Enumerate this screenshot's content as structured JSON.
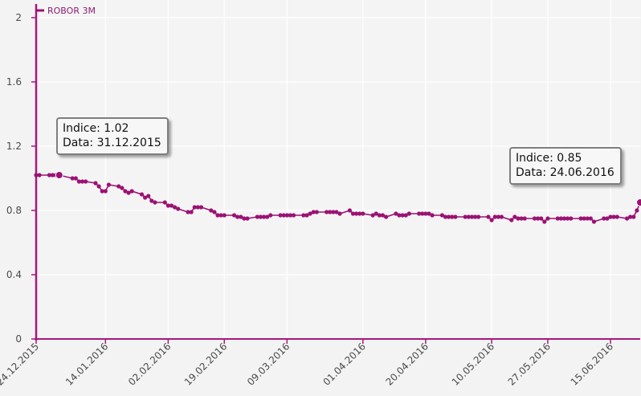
{
  "chart_data": {
    "type": "line",
    "series": [
      {
        "name": "ROBOR 3M",
        "color": "#9b1273",
        "points": [
          [
            "2015-12-24",
            1.02
          ],
          [
            "2015-12-25",
            1.02
          ],
          [
            "2015-12-28",
            1.02
          ],
          [
            "2015-12-29",
            1.02
          ],
          [
            "2015-12-30",
            1.02
          ],
          [
            "2015-12-31",
            1.02
          ],
          [
            "2016-01-04",
            1.0
          ],
          [
            "2016-01-05",
            1.0
          ],
          [
            "2016-01-06",
            0.98
          ],
          [
            "2016-01-07",
            0.98
          ],
          [
            "2016-01-08",
            0.98
          ],
          [
            "2016-01-11",
            0.97
          ],
          [
            "2016-01-12",
            0.95
          ],
          [
            "2016-01-13",
            0.92
          ],
          [
            "2016-01-14",
            0.92
          ],
          [
            "2016-01-15",
            0.96
          ],
          [
            "2016-01-18",
            0.95
          ],
          [
            "2016-01-19",
            0.94
          ],
          [
            "2016-01-20",
            0.92
          ],
          [
            "2016-01-21",
            0.91
          ],
          [
            "2016-01-22",
            0.92
          ],
          [
            "2016-01-25",
            0.9
          ],
          [
            "2016-01-26",
            0.88
          ],
          [
            "2016-01-27",
            0.89
          ],
          [
            "2016-01-28",
            0.86
          ],
          [
            "2016-01-29",
            0.85
          ],
          [
            "2016-02-01",
            0.85
          ],
          [
            "2016-02-02",
            0.83
          ],
          [
            "2016-02-03",
            0.83
          ],
          [
            "2016-02-04",
            0.82
          ],
          [
            "2016-02-05",
            0.81
          ],
          [
            "2016-02-08",
            0.79
          ],
          [
            "2016-02-09",
            0.79
          ],
          [
            "2016-02-10",
            0.82
          ],
          [
            "2016-02-11",
            0.82
          ],
          [
            "2016-02-12",
            0.82
          ],
          [
            "2016-02-15",
            0.8
          ],
          [
            "2016-02-16",
            0.79
          ],
          [
            "2016-02-17",
            0.77
          ],
          [
            "2016-02-18",
            0.77
          ],
          [
            "2016-02-19",
            0.77
          ],
          [
            "2016-02-22",
            0.77
          ],
          [
            "2016-02-23",
            0.76
          ],
          [
            "2016-02-24",
            0.76
          ],
          [
            "2016-02-25",
            0.75
          ],
          [
            "2016-02-26",
            0.75
          ],
          [
            "2016-02-29",
            0.76
          ],
          [
            "2016-03-01",
            0.76
          ],
          [
            "2016-03-02",
            0.76
          ],
          [
            "2016-03-03",
            0.76
          ],
          [
            "2016-03-04",
            0.77
          ],
          [
            "2016-03-07",
            0.77
          ],
          [
            "2016-03-08",
            0.77
          ],
          [
            "2016-03-09",
            0.77
          ],
          [
            "2016-03-10",
            0.77
          ],
          [
            "2016-03-11",
            0.77
          ],
          [
            "2016-03-14",
            0.77
          ],
          [
            "2016-03-15",
            0.77
          ],
          [
            "2016-03-16",
            0.78
          ],
          [
            "2016-03-17",
            0.79
          ],
          [
            "2016-03-18",
            0.79
          ],
          [
            "2016-03-21",
            0.79
          ],
          [
            "2016-03-22",
            0.79
          ],
          [
            "2016-03-23",
            0.79
          ],
          [
            "2016-03-24",
            0.79
          ],
          [
            "2016-03-25",
            0.78
          ],
          [
            "2016-03-28",
            0.8
          ],
          [
            "2016-03-29",
            0.78
          ],
          [
            "2016-03-30",
            0.78
          ],
          [
            "2016-03-31",
            0.78
          ],
          [
            "2016-04-01",
            0.78
          ],
          [
            "2016-04-04",
            0.77
          ],
          [
            "2016-04-05",
            0.78
          ],
          [
            "2016-04-06",
            0.77
          ],
          [
            "2016-04-07",
            0.77
          ],
          [
            "2016-04-08",
            0.76
          ],
          [
            "2016-04-11",
            0.78
          ],
          [
            "2016-04-12",
            0.77
          ],
          [
            "2016-04-13",
            0.77
          ],
          [
            "2016-04-14",
            0.77
          ],
          [
            "2016-04-15",
            0.78
          ],
          [
            "2016-04-18",
            0.78
          ],
          [
            "2016-04-19",
            0.78
          ],
          [
            "2016-04-20",
            0.78
          ],
          [
            "2016-04-21",
            0.78
          ],
          [
            "2016-04-22",
            0.77
          ],
          [
            "2016-04-25",
            0.77
          ],
          [
            "2016-04-26",
            0.76
          ],
          [
            "2016-04-27",
            0.76
          ],
          [
            "2016-04-28",
            0.76
          ],
          [
            "2016-04-29",
            0.76
          ],
          [
            "2016-05-02",
            0.76
          ],
          [
            "2016-05-03",
            0.76
          ],
          [
            "2016-05-04",
            0.76
          ],
          [
            "2016-05-05",
            0.76
          ],
          [
            "2016-05-06",
            0.76
          ],
          [
            "2016-05-09",
            0.76
          ],
          [
            "2016-05-10",
            0.74
          ],
          [
            "2016-05-11",
            0.76
          ],
          [
            "2016-05-12",
            0.76
          ],
          [
            "2016-05-13",
            0.76
          ],
          [
            "2016-05-16",
            0.74
          ],
          [
            "2016-05-17",
            0.76
          ],
          [
            "2016-05-18",
            0.75
          ],
          [
            "2016-05-19",
            0.75
          ],
          [
            "2016-05-20",
            0.75
          ],
          [
            "2016-05-23",
            0.75
          ],
          [
            "2016-05-24",
            0.75
          ],
          [
            "2016-05-25",
            0.75
          ],
          [
            "2016-05-26",
            0.73
          ],
          [
            "2016-05-27",
            0.75
          ],
          [
            "2016-05-30",
            0.75
          ],
          [
            "2016-05-31",
            0.75
          ],
          [
            "2016-06-01",
            0.75
          ],
          [
            "2016-06-02",
            0.75
          ],
          [
            "2016-06-03",
            0.75
          ],
          [
            "2016-06-06",
            0.75
          ],
          [
            "2016-06-07",
            0.75
          ],
          [
            "2016-06-08",
            0.75
          ],
          [
            "2016-06-09",
            0.75
          ],
          [
            "2016-06-10",
            0.73
          ],
          [
            "2016-06-13",
            0.75
          ],
          [
            "2016-06-14",
            0.75
          ],
          [
            "2016-06-15",
            0.76
          ],
          [
            "2016-06-16",
            0.76
          ],
          [
            "2016-06-17",
            0.76
          ],
          [
            "2016-06-20",
            0.75
          ],
          [
            "2016-06-21",
            0.76
          ],
          [
            "2016-06-22",
            0.76
          ],
          [
            "2016-06-23",
            0.8
          ],
          [
            "2016-06-24",
            0.85
          ]
        ]
      }
    ],
    "x_range": [
      "2015-12-24",
      "2016-06-24"
    ],
    "ylim": [
      0,
      2
    ],
    "y_ticks": [
      "0",
      "0.4",
      "0.8",
      "1.2",
      "1.6",
      "2"
    ],
    "x_ticks": [
      {
        "date": "2015-12-24",
        "label": "24.12.2015"
      },
      {
        "date": "2016-01-14",
        "label": "14.01.2016"
      },
      {
        "date": "2016-02-02",
        "label": "02.02.2016"
      },
      {
        "date": "2016-02-19",
        "label": "19.02.2016"
      },
      {
        "date": "2016-03-09",
        "label": "09.03.2016"
      },
      {
        "date": "2016-04-01",
        "label": "01.04.2016"
      },
      {
        "date": "2016-04-20",
        "label": "20.04.2016"
      },
      {
        "date": "2016-05-10",
        "label": "10.05.2016"
      },
      {
        "date": "2016-05-27",
        "label": "27.05.2016"
      },
      {
        "date": "2016-06-15",
        "label": "15.06.2016"
      }
    ],
    "grid": true,
    "legend": {
      "label": "ROBOR 3M",
      "placement": "top-left"
    },
    "highlights": [
      {
        "date": "2015-12-31",
        "value": 1.02,
        "line1": "Indice: 1.02",
        "line2": "Data: 31.12.2015"
      },
      {
        "date": "2016-06-24",
        "value": 0.85,
        "line1": "Indice: 0.85",
        "line2": "Data: 24.06.2016"
      }
    ]
  },
  "colors": {
    "series": "#9b1273",
    "axis": "#a8177e",
    "grid": "#ffffff",
    "background": "#f3f3f3"
  }
}
